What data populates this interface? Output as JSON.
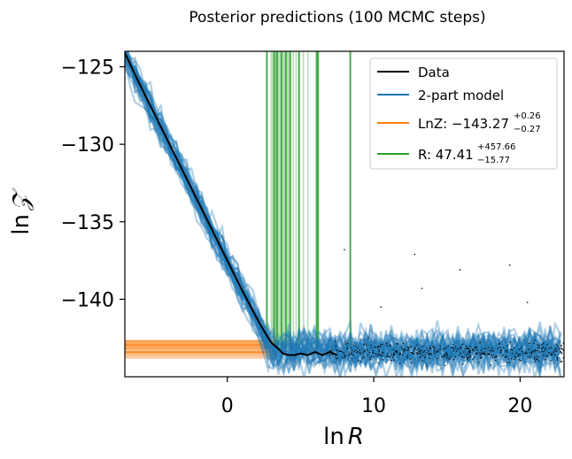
{
  "chart_data": {
    "type": "line",
    "title": "Posterior predictions (100 MCMC steps)",
    "xlabel_main": "ln",
    "xlabel_var": "R",
    "ylabel_main": "ln",
    "ylabel_var": "𝒵",
    "xlim": [
      -7,
      23
    ],
    "ylim": [
      -145,
      -124
    ],
    "xticks": [
      0,
      10,
      20
    ],
    "yticks": [
      -125,
      -130,
      -135,
      -140
    ],
    "xtick_labels": [
      "0",
      "10",
      "20"
    ],
    "ytick_labels": [
      "−125",
      "−130",
      "−135",
      "−140"
    ],
    "grid": false,
    "legend_position": "top-right",
    "legend": [
      {
        "key": "data",
        "label": "Data",
        "color": "#000000"
      },
      {
        "key": "model",
        "label": "2-part model",
        "color": "#1f77b4"
      },
      {
        "key": "lnz",
        "label": "LnZ: −143.27",
        "sup": "+0.26",
        "sub": "−0.27",
        "color": "#ff7f0e"
      },
      {
        "key": "r",
        "label": "R: 47.41",
        "sup": "+457.66",
        "sub": "−15.77",
        "color": "#2ca02c"
      }
    ],
    "series": [
      {
        "name": "Data",
        "x": [
          -7,
          -6,
          -5,
          -4,
          -3,
          -2,
          -1,
          0,
          1,
          2,
          2.6,
          3.0,
          3.5,
          3.8,
          4.2,
          4.6,
          5,
          5.5,
          6,
          6.5,
          7,
          7.5
        ],
        "y": [
          -124.1,
          -126.1,
          -128.0,
          -129.9,
          -131.8,
          -133.7,
          -135.6,
          -137.5,
          -139.4,
          -141.2,
          -142.2,
          -142.8,
          -143.2,
          -143.5,
          -143.6,
          -143.6,
          -143.5,
          -143.6,
          -143.4,
          -143.6,
          -143.4,
          -143.6
        ]
      },
      {
        "name": "2-part model",
        "lnZ_median": -143.27,
        "R_median": 47.41,
        "slope": -1.9,
        "intercept": -137.5
      }
    ],
    "lnz_band": [
      -143.8,
      -142.6
    ],
    "r_vertical_lines_lnR": [
      2.7,
      3.0,
      3.1,
      3.2,
      3.3,
      3.35,
      3.4,
      3.5,
      3.6,
      3.7,
      3.8,
      3.9,
      4.0,
      4.1,
      4.2,
      4.3,
      4.5,
      4.7,
      4.9,
      5.2,
      5.5,
      6.1,
      6.2,
      8.4
    ],
    "colors": {
      "data": "#000000",
      "model": "#1f77b4",
      "lnz": "#ff7f0e",
      "r": "#2ca02c"
    }
  }
}
